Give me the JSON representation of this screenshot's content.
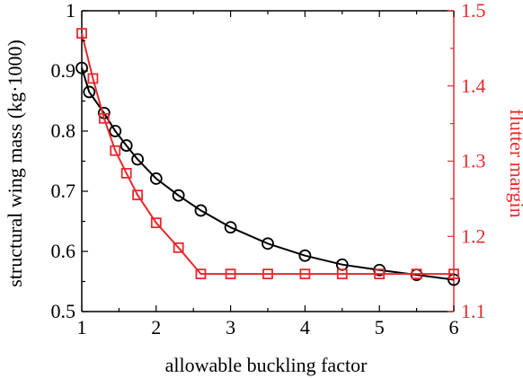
{
  "chart_data": {
    "type": "line",
    "xlabel": "allowable buckling factor",
    "ylabel_left": "structural wing mass (kg·1000)",
    "ylabel_right": "flutter margin",
    "xlim": [
      1,
      6
    ],
    "ylim_left": [
      0.5,
      1.0
    ],
    "ylim_right": [
      1.1,
      1.5
    ],
    "x_ticks": [
      "1",
      "2",
      "3",
      "4",
      "5",
      "6"
    ],
    "y_left_ticks": [
      "0.5",
      "0.6",
      "0.7",
      "0.8",
      "0.9",
      "1"
    ],
    "y_right_ticks": [
      "1.1",
      "1.2",
      "1.3",
      "1.4",
      "1.5"
    ],
    "grid": false,
    "series": [
      {
        "axis": "left",
        "color": "#000000",
        "marker": "circle",
        "x": [
          1.0,
          1.1,
          1.3,
          1.45,
          1.6,
          1.75,
          2.0,
          2.3,
          2.6,
          3.0,
          3.5,
          4.0,
          4.5,
          5.0,
          5.5,
          6.0
        ],
        "y": [
          0.905,
          0.865,
          0.83,
          0.8,
          0.776,
          0.753,
          0.721,
          0.693,
          0.668,
          0.64,
          0.613,
          0.593,
          0.578,
          0.569,
          0.561,
          0.553
        ]
      },
      {
        "axis": "right",
        "color": "#e8292d",
        "marker": "square",
        "x": [
          1.0,
          1.15,
          1.3,
          1.45,
          1.6,
          1.75,
          2.0,
          2.3,
          2.6,
          3.0,
          3.5,
          4.0,
          4.5,
          5.0,
          5.5,
          6.0
        ],
        "y": [
          1.47,
          1.41,
          1.357,
          1.314,
          1.284,
          1.255,
          1.218,
          1.185,
          1.15,
          1.15,
          1.15,
          1.15,
          1.15,
          1.15,
          1.15,
          1.15
        ]
      }
    ]
  }
}
